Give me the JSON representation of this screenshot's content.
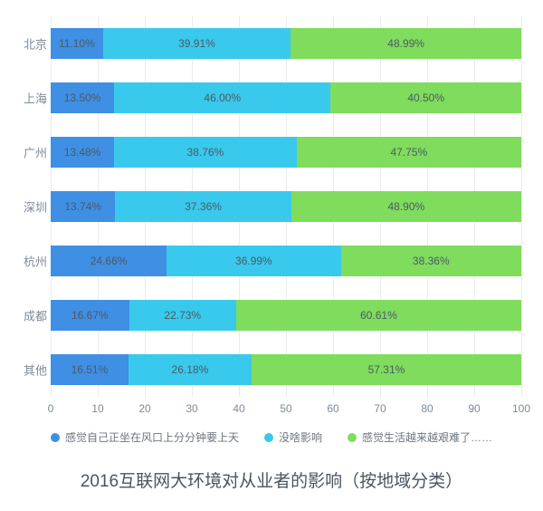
{
  "chart": {
    "type": "stacked-bar-horizontal",
    "title": "2016互联网大环境对从业者的影响（按地域分类）",
    "title_fontsize": 19,
    "title_color": "#4a5560",
    "background_color": "#ffffff",
    "grid_color": "#e8ecef",
    "axis_label_color": "#7f8b97",
    "axis_fontsize": 12,
    "seg_label_color": "#4b5a66",
    "seg_label_fontsize": 12,
    "x": {
      "min": 0,
      "max": 100,
      "tick_step": 10,
      "ticks": [
        0,
        10,
        20,
        30,
        40,
        50,
        60,
        70,
        80,
        90,
        100
      ]
    },
    "series": [
      {
        "key": "s1",
        "label": "感觉自己正坐在风口上分分钟要上天",
        "color": "#3f8fe4"
      },
      {
        "key": "s2",
        "label": "没啥影响",
        "color": "#39c9ec"
      },
      {
        "key": "s3",
        "label": "感觉生活越来越艰难了……",
        "color": "#7fdc5c"
      }
    ],
    "categories": [
      {
        "name": "北京",
        "values": {
          "s1": 11.1,
          "s2": 39.91,
          "s3": 48.99
        }
      },
      {
        "name": "上海",
        "values": {
          "s1": 13.5,
          "s2": 46.0,
          "s3": 40.5
        }
      },
      {
        "name": "广州",
        "values": {
          "s1": 13.48,
          "s2": 38.76,
          "s3": 47.75
        }
      },
      {
        "name": "深圳",
        "values": {
          "s1": 13.74,
          "s2": 37.36,
          "s3": 48.9
        }
      },
      {
        "name": "杭州",
        "values": {
          "s1": 24.66,
          "s2": 36.99,
          "s3": 38.36
        }
      },
      {
        "name": "成都",
        "values": {
          "s1": 16.67,
          "s2": 22.73,
          "s3": 60.61
        }
      },
      {
        "name": "其他",
        "values": {
          "s1": 16.51,
          "s2": 26.18,
          "s3": 57.31
        }
      }
    ]
  }
}
